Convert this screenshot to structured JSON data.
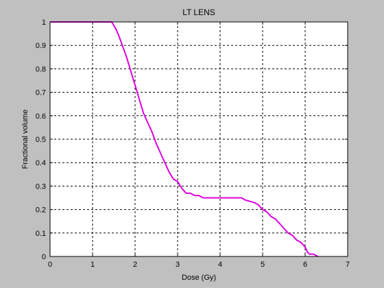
{
  "chart_data": {
    "type": "line",
    "title": "LT LENS",
    "xlabel": "Dose (Gy)",
    "ylabel": "Fractional volume",
    "xlim": [
      0,
      7
    ],
    "ylim": [
      0,
      1
    ],
    "xticks": [
      0,
      1,
      2,
      3,
      4,
      5,
      6,
      7
    ],
    "yticks": [
      0,
      0.1,
      0.2,
      0.3,
      0.4,
      0.5,
      0.6,
      0.7,
      0.8,
      0.9,
      1
    ],
    "grid": true,
    "series": [
      {
        "color": "#dd00dd",
        "x": [
          0,
          1.45,
          1.55,
          1.62,
          1.7,
          1.8,
          1.9,
          2.0,
          2.1,
          2.2,
          2.3,
          2.4,
          2.5,
          2.6,
          2.7,
          2.8,
          2.9,
          3.0,
          3.1,
          3.2,
          3.3,
          3.4,
          3.5,
          3.6,
          3.7,
          3.8,
          4.0,
          4.2,
          4.4,
          4.5,
          4.6,
          4.8,
          4.9,
          5.0,
          5.1,
          5.2,
          5.3,
          5.4,
          5.5,
          5.6,
          5.7,
          5.8,
          5.9,
          6.0,
          6.05,
          6.1,
          6.2,
          6.3
        ],
        "values": [
          1,
          1,
          0.97,
          0.94,
          0.9,
          0.85,
          0.79,
          0.73,
          0.67,
          0.61,
          0.57,
          0.53,
          0.48,
          0.44,
          0.4,
          0.36,
          0.33,
          0.32,
          0.29,
          0.27,
          0.27,
          0.26,
          0.26,
          0.25,
          0.25,
          0.25,
          0.25,
          0.25,
          0.25,
          0.25,
          0.24,
          0.23,
          0.22,
          0.2,
          0.19,
          0.17,
          0.16,
          0.14,
          0.12,
          0.1,
          0.09,
          0.07,
          0.06,
          0.04,
          0.02,
          0.01,
          0.01,
          0
        ]
      }
    ]
  }
}
